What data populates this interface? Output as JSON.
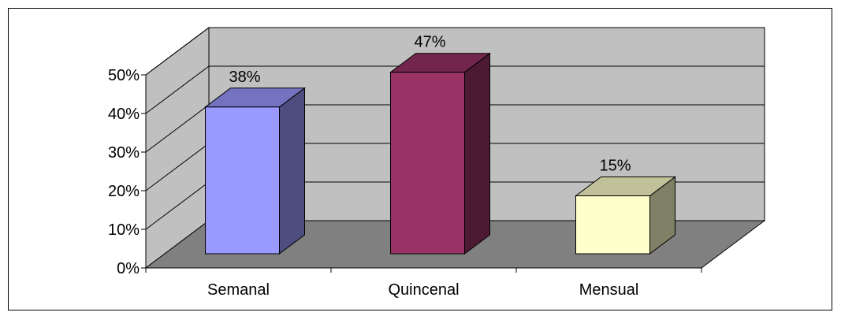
{
  "chart_data": {
    "type": "bar",
    "style": "3d-column",
    "categories": [
      "Semanal",
      "Quincenal",
      "Mensual"
    ],
    "values": [
      38,
      47,
      15
    ],
    "data_labels": [
      "38%",
      "47%",
      "15%"
    ],
    "ylim": [
      0,
      50
    ],
    "yticks": [
      0,
      10,
      20,
      30,
      40,
      50
    ],
    "ytick_labels": [
      "0%",
      "10%",
      "20%",
      "30%",
      "40%",
      "50%"
    ],
    "grid": true,
    "legend": "none",
    "title": "",
    "xlabel": "",
    "ylabel": "",
    "colors": {
      "bars": [
        {
          "front": "#9999FF",
          "side": "#4D4D80",
          "top": "#7373C0"
        },
        {
          "front": "#993366",
          "side": "#4D1A33",
          "top": "#73264D"
        },
        {
          "front": "#FFFFCC",
          "side": "#808066",
          "top": "#C0C099"
        }
      ],
      "wall": "#C0C0C0",
      "floor": "#808080",
      "gridline": "#000000"
    }
  }
}
